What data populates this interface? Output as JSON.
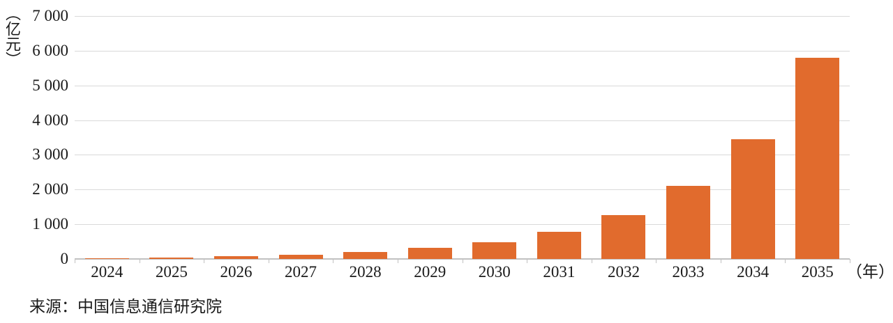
{
  "chart_data": {
    "type": "bar",
    "title": "",
    "unit_label": "（亿元）",
    "x_unit_label": "（年）",
    "categories": [
      "2024",
      "2025",
      "2026",
      "2027",
      "2028",
      "2029",
      "2030",
      "2031",
      "2032",
      "2033",
      "2034",
      "2035"
    ],
    "values": [
      12,
      50,
      80,
      120,
      200,
      330,
      490,
      780,
      1260,
      2100,
      3450,
      5800
    ],
    "ylim": [
      0,
      7000
    ],
    "ytick_step": 1000,
    "ytick_labels": [
      "0",
      "1 000",
      "2 000",
      "3 000",
      "4 000",
      "5 000",
      "6 000",
      "7 000"
    ],
    "grid": true,
    "legend": "none",
    "bar_color": "#e16b2d",
    "gridline_color": "#d9d9d9",
    "axis_color": "#c1c1c1",
    "text_color": "#1a1a1a"
  },
  "source": {
    "text": "来源：中国信息通信研究院"
  }
}
